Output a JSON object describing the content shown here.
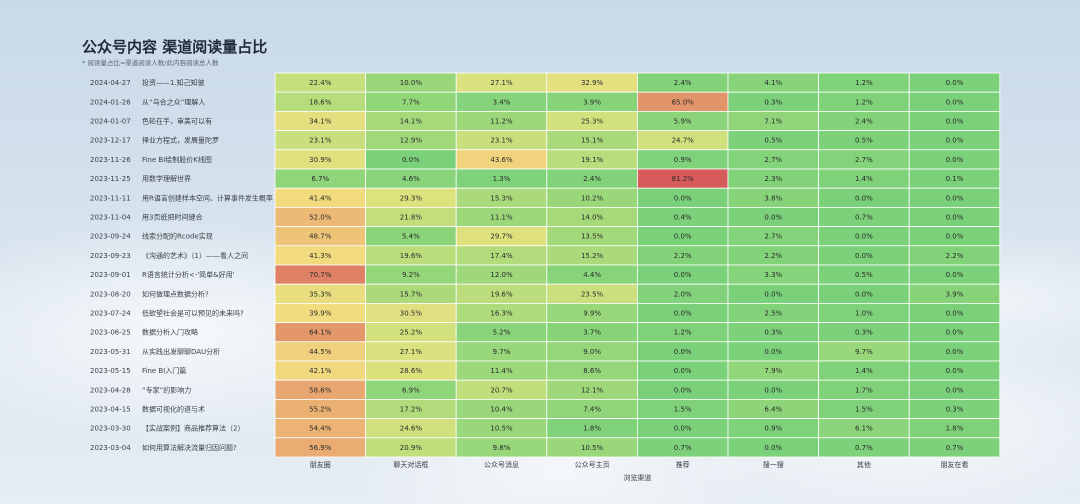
{
  "header": {
    "title": "公众号内容 渠道阅读量占比",
    "subtitle": "* 阅读量占比=渠道阅读人数/此内容阅读总人数"
  },
  "chart_data": {
    "type": "heatmap",
    "xlabel": "浏览渠道",
    "columns": [
      "朋友圈",
      "聊天对话框",
      "公众号消息",
      "公众号主页",
      "推荐",
      "搜一搜",
      "其他",
      "朋友在看"
    ],
    "rows": [
      {
        "date": "2024-04-27",
        "title": "投资——1.知己知彼",
        "values": [
          "22.4%",
          "10.0%",
          "27.1%",
          "32.9%",
          "2.4%",
          "4.1%",
          "1.2%",
          "0.0%"
        ]
      },
      {
        "date": "2024-01-26",
        "title": "从“乌合之众”理解人",
        "values": [
          "18.6%",
          "7.7%",
          "3.4%",
          "3.9%",
          "65.0%",
          "0.3%",
          "1.2%",
          "0.0%"
        ]
      },
      {
        "date": "2024-01-07",
        "title": "色轮在手，审美可以有",
        "values": [
          "34.1%",
          "14.1%",
          "11.2%",
          "25.3%",
          "5.9%",
          "7.1%",
          "2.4%",
          "0.0%"
        ]
      },
      {
        "date": "2023-12-17",
        "title": "择业方程式，发展量陀罗",
        "values": [
          "23.1%",
          "12.9%",
          "23.1%",
          "15.1%",
          "24.7%",
          "0.5%",
          "0.5%",
          "0.0%"
        ]
      },
      {
        "date": "2023-11-26",
        "title": "Fine BI绘制股价K线图",
        "values": [
          "30.9%",
          "0.0%",
          "43.6%",
          "19.1%",
          "0.9%",
          "2.7%",
          "2.7%",
          "0.0%"
        ]
      },
      {
        "date": "2023-11-25",
        "title": "用数学理解世界",
        "values": [
          "6.7%",
          "4.6%",
          "1.3%",
          "2.4%",
          "81.2%",
          "2.3%",
          "1.4%",
          "0.1%"
        ]
      },
      {
        "date": "2023-11-11",
        "title": "用R语言创建样本空间、计算事件发生概率",
        "values": [
          "41.4%",
          "29.3%",
          "15.3%",
          "10.2%",
          "0.0%",
          "3.8%",
          "0.0%",
          "0.0%"
        ]
      },
      {
        "date": "2023-11-04",
        "title": "用3页纸把时间缝合",
        "values": [
          "52.0%",
          "21.8%",
          "11.1%",
          "14.0%",
          "0.4%",
          "0.0%",
          "0.7%",
          "0.0%"
        ]
      },
      {
        "date": "2023-09-24",
        "title": "线索分配的Rcode实现",
        "values": [
          "48.7%",
          "5.4%",
          "29.7%",
          "13.5%",
          "0.0%",
          "2.7%",
          "0.0%",
          "0.0%"
        ]
      },
      {
        "date": "2023-09-23",
        "title": "《沟通的艺术》（1）——看人之间",
        "values": [
          "41.3%",
          "19.6%",
          "17.4%",
          "15.2%",
          "2.2%",
          "2.2%",
          "0.0%",
          "2.2%"
        ]
      },
      {
        "date": "2023-09-01",
        "title": "R语言统计分析<-'简单&好用'",
        "values": [
          "70.7%",
          "9.2%",
          "12.0%",
          "4.4%",
          "0.0%",
          "3.3%",
          "0.5%",
          "0.0%"
        ]
      },
      {
        "date": "2023-08-20",
        "title": "如何做理点数据分析?",
        "values": [
          "35.3%",
          "15.7%",
          "19.6%",
          "23.5%",
          "2.0%",
          "0.0%",
          "0.0%",
          "3.9%"
        ]
      },
      {
        "date": "2023-07-24",
        "title": "低欲望社会是可以预见的未来吗?",
        "values": [
          "39.9%",
          "30.5%",
          "16.3%",
          "9.9%",
          "0.0%",
          "2.5%",
          "1.0%",
          "0.0%"
        ]
      },
      {
        "date": "2023-06-25",
        "title": "数据分析入门攻略",
        "values": [
          "64.1%",
          "25.2%",
          "5.2%",
          "3.7%",
          "1.2%",
          "0.3%",
          "0.3%",
          "0.0%"
        ]
      },
      {
        "date": "2023-05-31",
        "title": "从实践出发聊聊DAU分析",
        "values": [
          "44.5%",
          "27.1%",
          "9.7%",
          "9.0%",
          "0.0%",
          "0.0%",
          "9.7%",
          "0.0%"
        ]
      },
      {
        "date": "2023-05-15",
        "title": "Fine BI入门篇",
        "values": [
          "42.1%",
          "28.6%",
          "11.4%",
          "8.6%",
          "0.0%",
          "7.9%",
          "1.4%",
          "0.0%"
        ]
      },
      {
        "date": "2023-04-28",
        "title": "“专家”的影响力",
        "values": [
          "58.6%",
          "6.9%",
          "20.7%",
          "12.1%",
          "0.0%",
          "0.0%",
          "1.7%",
          "0.0%"
        ]
      },
      {
        "date": "2023-04-15",
        "title": "数据可视化的道与术",
        "values": [
          "55.2%",
          "17.2%",
          "10.4%",
          "7.4%",
          "1.5%",
          "6.4%",
          "1.5%",
          "0.3%"
        ]
      },
      {
        "date": "2023-03-30",
        "title": "【实战案例】商品推荐算法（2）",
        "values": [
          "54.4%",
          "24.6%",
          "10.5%",
          "1.8%",
          "0.0%",
          "0.9%",
          "6.1%",
          "1.8%"
        ]
      },
      {
        "date": "2023-03-04",
        "title": "如何用算法解决流量归因问题?",
        "values": [
          "56.9%",
          "20.9%",
          "9.8%",
          "10.5%",
          "0.7%",
          "0.0%",
          "0.7%",
          "0.7%"
        ]
      }
    ],
    "color_scale": [
      "#7bd17a",
      "#a3d97a",
      "#d9e27e",
      "#f2dc80",
      "#ecb474",
      "#e08c68",
      "#d85b5b"
    ]
  }
}
